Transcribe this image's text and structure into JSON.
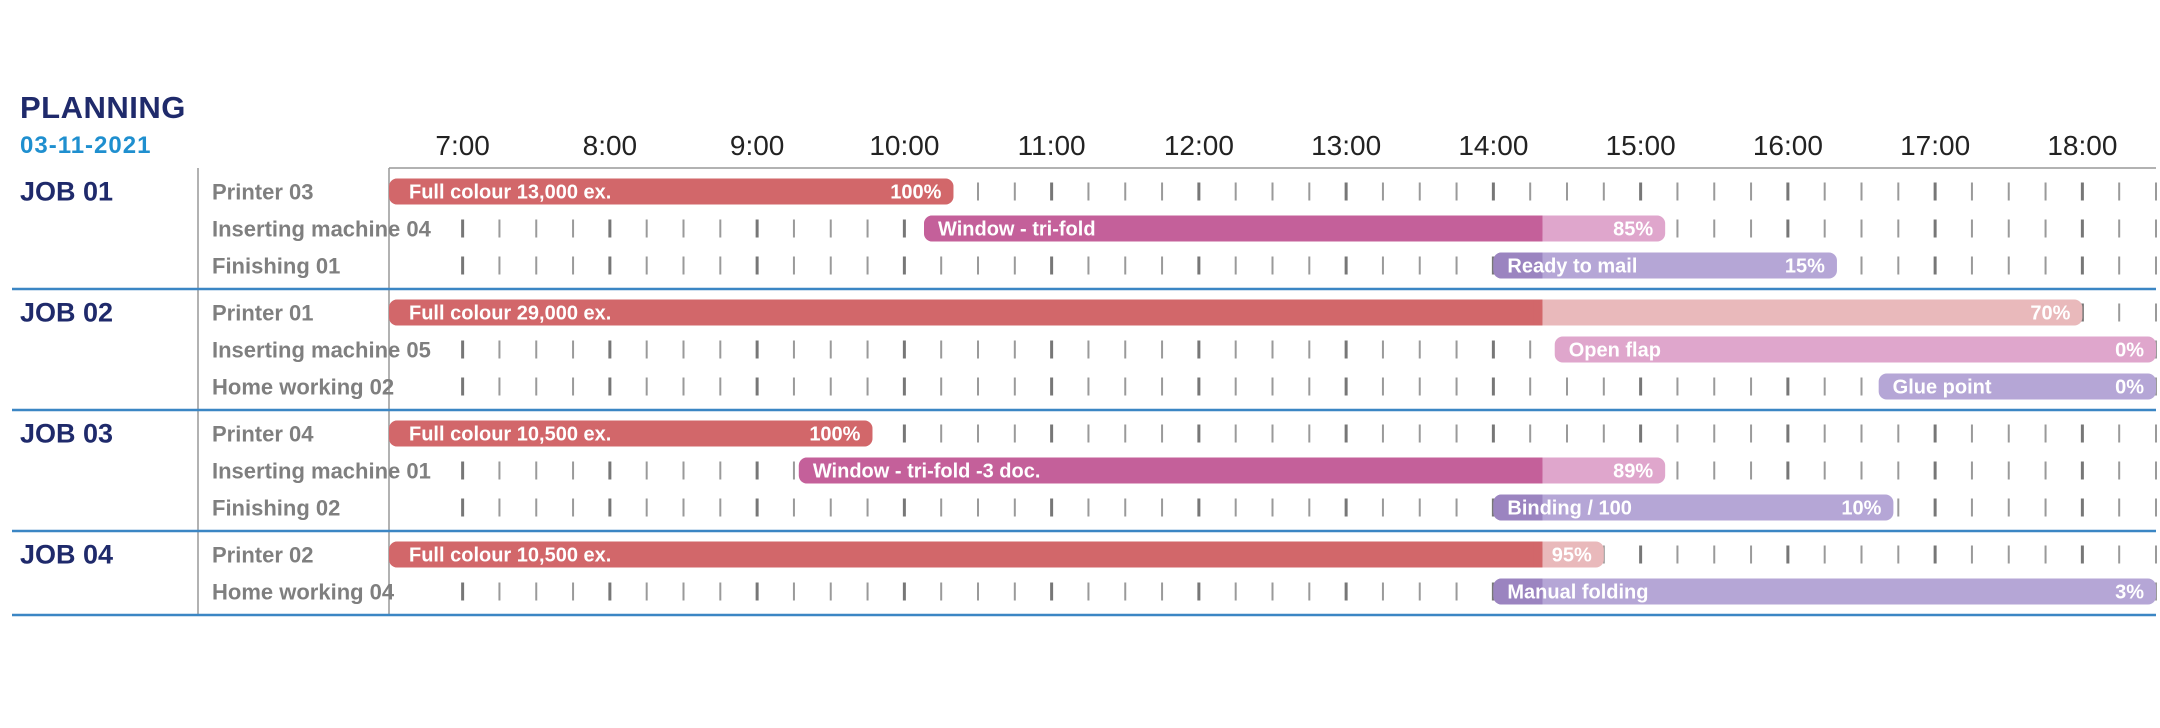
{
  "title": "PLANNING",
  "date": "03-11-2021",
  "chart_data": {
    "type": "gantt",
    "hours": [
      "7:00",
      "8:00",
      "9:00",
      "10:00",
      "11:00",
      "12:00",
      "13:00",
      "14:00",
      "15:00",
      "16:00",
      "17:00",
      "18:00"
    ],
    "x_range": [
      "6:30",
      "18:30"
    ],
    "now": "14:20",
    "jobs": [
      {
        "name": "JOB 01",
        "tasks": [
          {
            "machine": "Printer 03",
            "label": "Full colour 13,000 ex.",
            "start": "6:30",
            "end": "10:20",
            "progress_label": "100%",
            "type": "print"
          },
          {
            "machine": "Inserting machine 04",
            "label": "Window - tri-fold",
            "start": "10:08",
            "end": "15:10",
            "progress_label": "85%",
            "type": "insert"
          },
          {
            "machine": "Finishing 01",
            "label": "Ready to mail",
            "start": "14:00",
            "end": "16:20",
            "progress_label": "15%",
            "type": "finish"
          }
        ]
      },
      {
        "name": "JOB 02",
        "tasks": [
          {
            "machine": "Printer 01",
            "label": "Full colour 29,000 ex.",
            "start": "6:30",
            "end": "18:00",
            "progress_label": "70%",
            "type": "print"
          },
          {
            "machine": "Inserting machine 05",
            "label": "Open flap",
            "start": "14:25",
            "end": "18:30",
            "progress_label": "0%",
            "type": "insert"
          },
          {
            "machine": "Home working 02",
            "label": "Glue point",
            "start": "16:37",
            "end": "18:30",
            "progress_label": "0%",
            "type": "finish"
          }
        ]
      },
      {
        "name": "JOB 03",
        "tasks": [
          {
            "machine": "Printer 04",
            "label": "Full colour 10,500 ex.",
            "start": "6:30",
            "end": "9:47",
            "progress_label": "100%",
            "type": "print"
          },
          {
            "machine": "Inserting machine 01",
            "label": "Window - tri-fold -3 doc.",
            "start": "9:17",
            "end": "15:10",
            "progress_label": "89%",
            "type": "insert"
          },
          {
            "machine": "Finishing 02",
            "label": "Binding / 100",
            "start": "14:00",
            "end": "16:43",
            "progress_label": "10%",
            "type": "finish"
          }
        ]
      },
      {
        "name": "JOB 04",
        "tasks": [
          {
            "machine": "Printer 02",
            "label": "Full colour 10,500 ex.",
            "start": "6:30",
            "end": "14:45",
            "progress_label": "95%",
            "type": "print"
          },
          {
            "machine": "Home working 04",
            "label": "Manual folding",
            "start": "14:00",
            "end": "18:30",
            "progress_label": "3%",
            "type": "finish"
          }
        ]
      }
    ],
    "colors": {
      "print_done": "#d2676a",
      "print_todo": "#e9b9bb",
      "insert_done": "#c4609a",
      "insert_todo": "#dfa6cc",
      "finish_done": "#9b84c0",
      "finish_todo": "#b5a6d6",
      "separator": "#3b86c4",
      "tick": "#9a9a9a",
      "tick_hour": "#777777"
    }
  }
}
